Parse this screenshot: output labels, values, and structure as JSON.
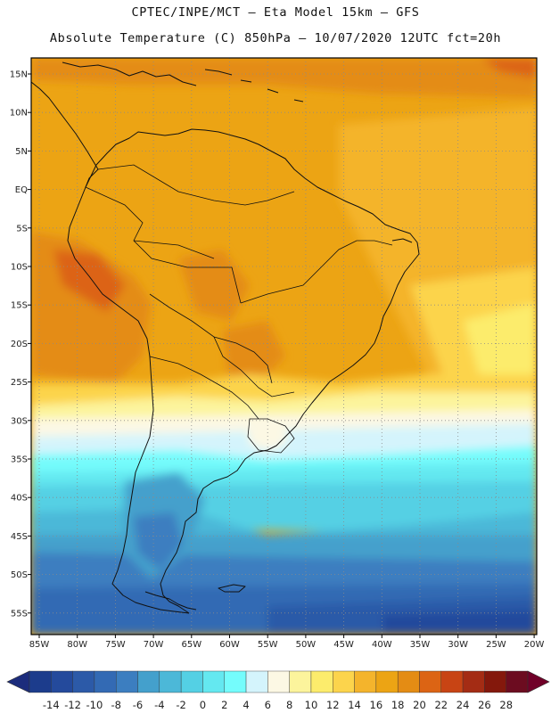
{
  "header": {
    "title_line1": "CPTEC/INPE/MCT –  Eta Model 15km – GFS",
    "title_line2": "Absolute Temperature (C) 850hPa – 10/07/2020 12UTC fct=20h"
  },
  "map": {
    "variable": "Absolute Temperature",
    "units": "C",
    "level": "850hPa",
    "lat_labels": [
      "15N",
      "10N",
      "5N",
      "EQ",
      "5S",
      "10S",
      "15S",
      "20S",
      "25S",
      "30S",
      "35S",
      "40S",
      "45S",
      "50S",
      "55S"
    ],
    "lon_labels": [
      "85W",
      "80W",
      "75W",
      "70W",
      "65W",
      "60W",
      "55W",
      "50W",
      "45W",
      "40W",
      "35W",
      "30W",
      "25W",
      "20W"
    ]
  },
  "colorbar": {
    "ticks": [
      "-14",
      "-12",
      "-10",
      "-8",
      "-6",
      "-4",
      "-2",
      "0",
      "2",
      "4",
      "6",
      "8",
      "10",
      "12",
      "14",
      "16",
      "18",
      "20",
      "22",
      "24",
      "26",
      "28"
    ],
    "colors": [
      "#1c3c8c",
      "#244a9c",
      "#2c5aa8",
      "#336ab4",
      "#3c7ec0",
      "#44a0cc",
      "#4cb8d8",
      "#54d0e4",
      "#64e8f0",
      "#74fcfc",
      "#d4f4fc",
      "#fcf8e4",
      "#fcf49c",
      "#fcec6c",
      "#fcd44c",
      "#f4b42c",
      "#eca414",
      "#e48c14",
      "#dc6414",
      "#c84414",
      "#a42c14",
      "#84180c",
      "#6c0c20"
    ],
    "under_color": "#1c2c7c",
    "over_color": "#700028"
  }
}
